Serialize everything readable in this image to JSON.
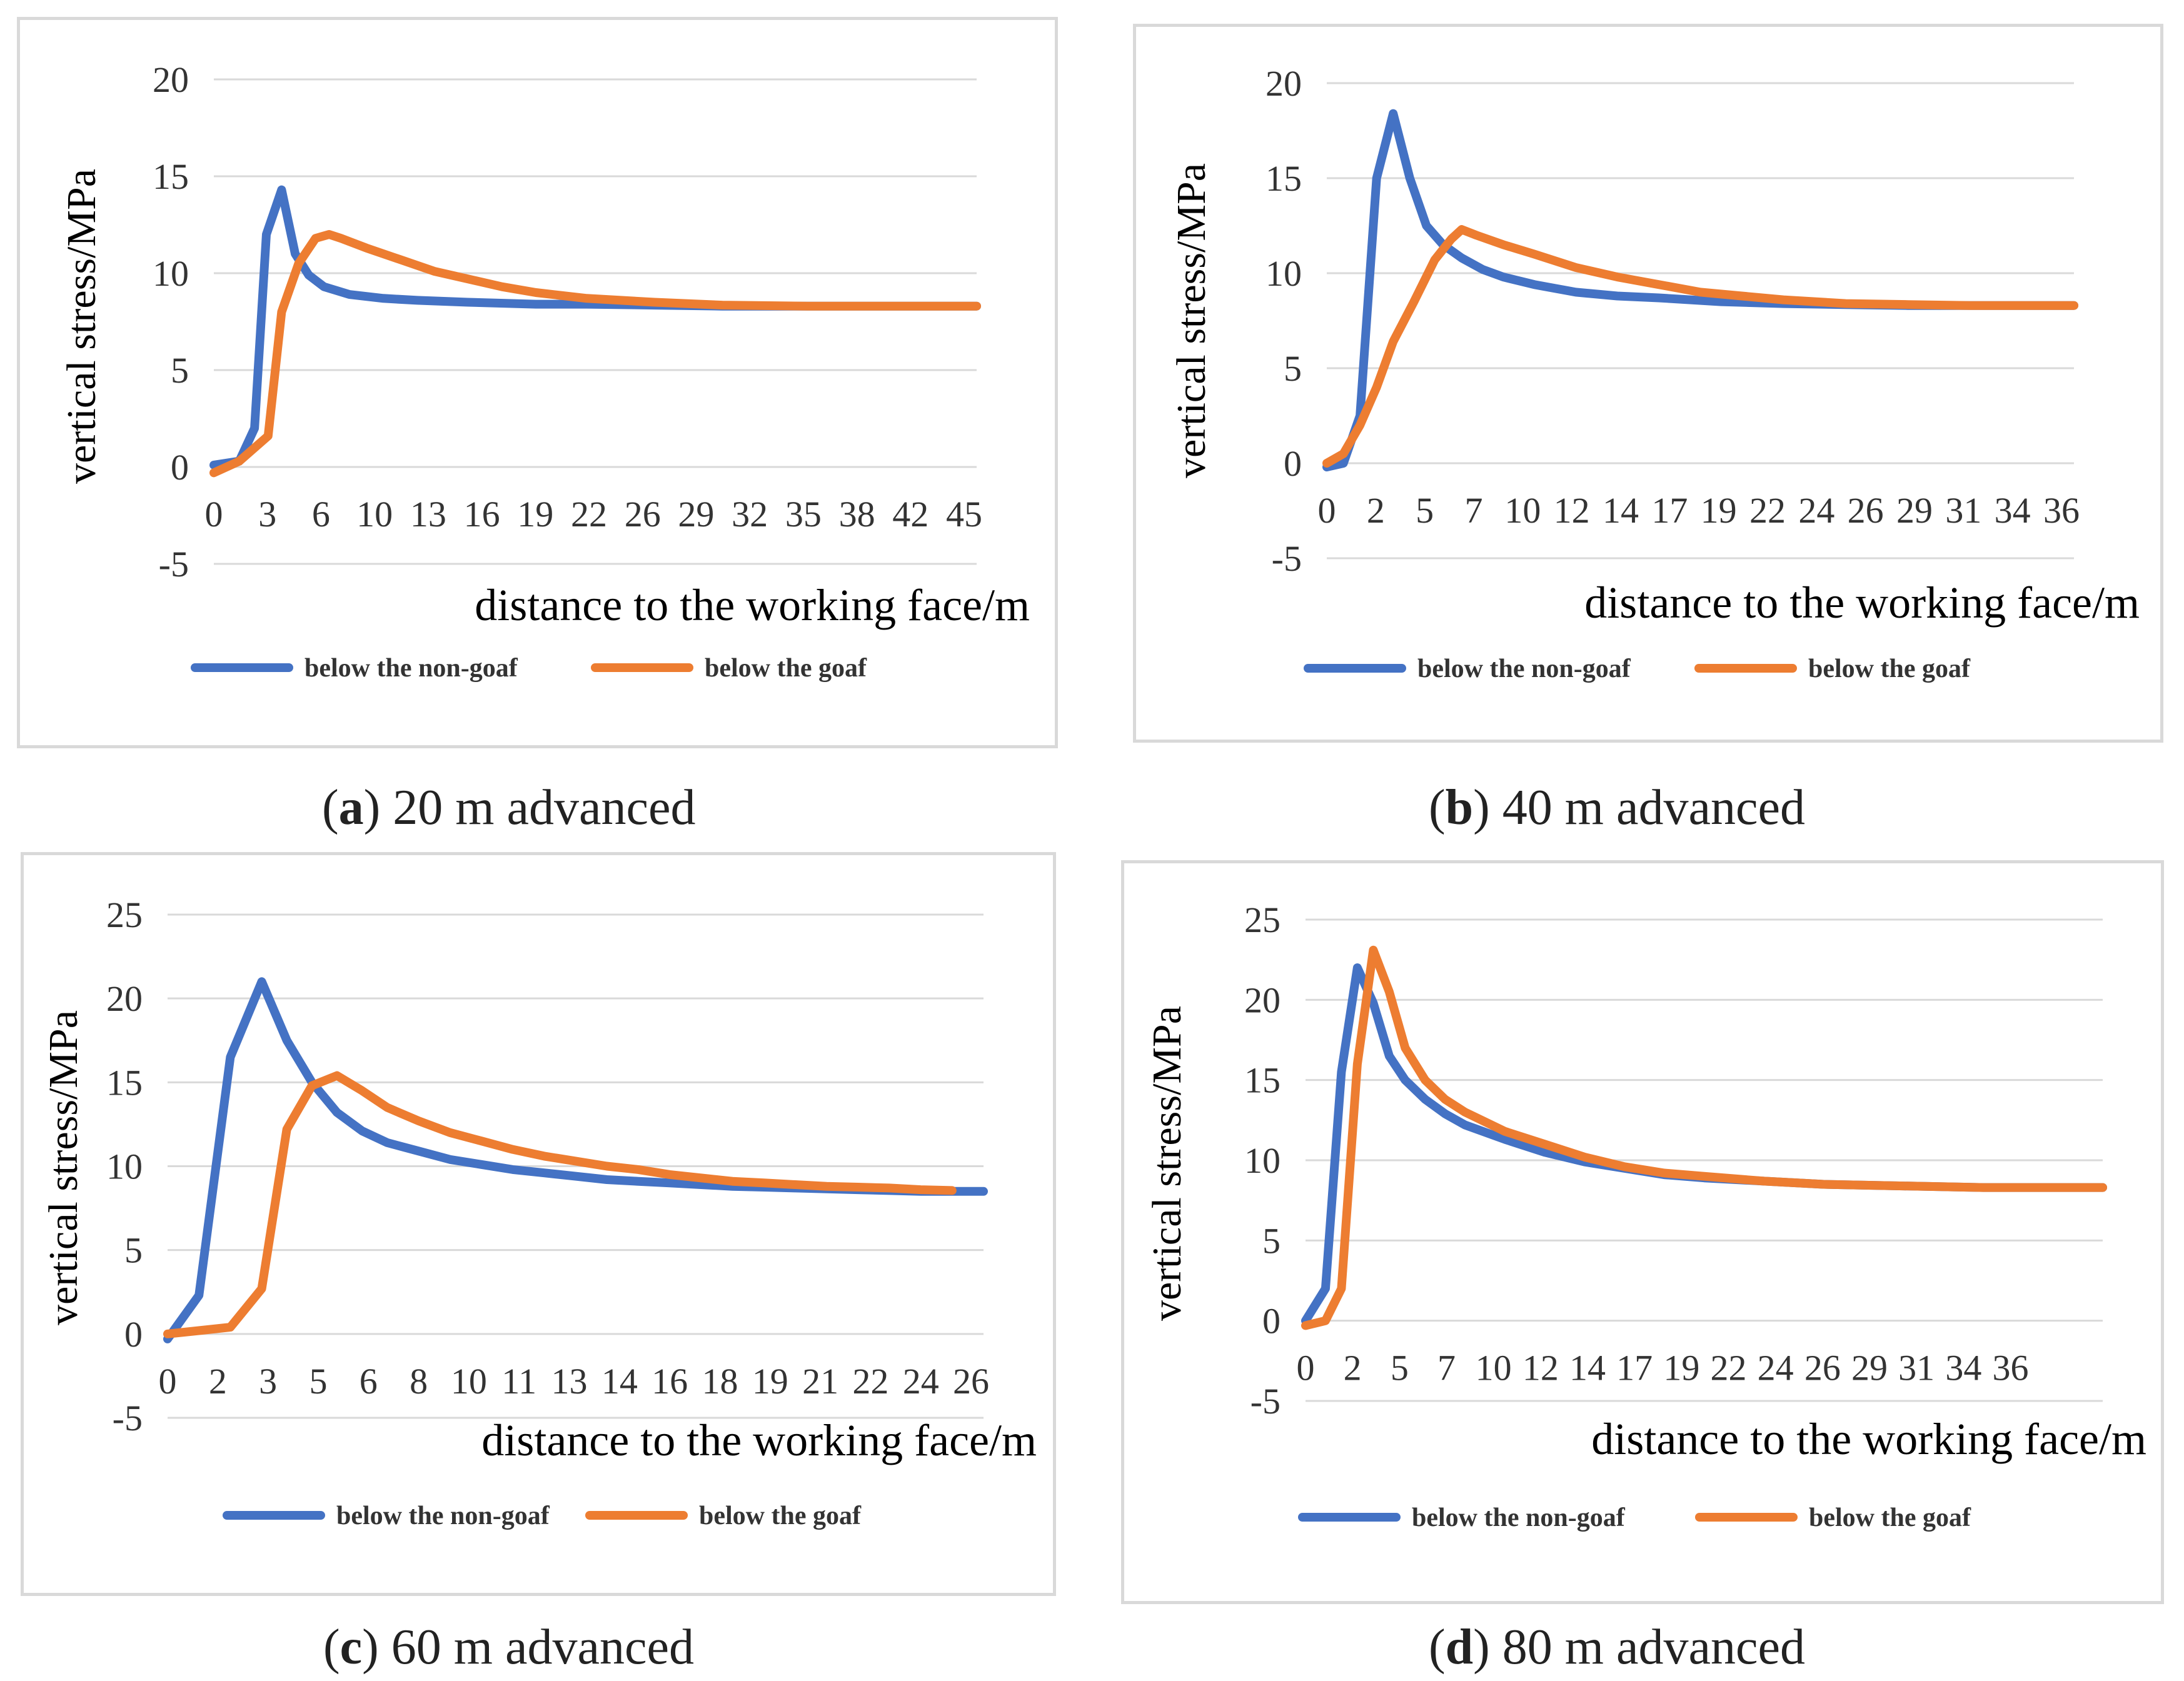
{
  "figure_captions": [
    {
      "letter": "a",
      "text": " 20 m advanced"
    },
    {
      "letter": "b",
      "text": " 40 m advanced"
    },
    {
      "letter": "c",
      "text": " 60 m advanced"
    },
    {
      "letter": "d",
      "text": " 80 m advanced"
    }
  ],
  "colors": {
    "non_goaf": "#4472c4",
    "goaf": "#ed7d31",
    "grid": "#d9d9d9"
  },
  "chart_data": [
    {
      "id": "a",
      "type": "line",
      "title": "",
      "ylabel": "vertical stress/MPa",
      "xlabel": "distance to the working face/m",
      "ylim": [
        -5,
        20
      ],
      "yticks": [
        -5,
        0,
        5,
        10,
        15,
        20
      ],
      "grid": true,
      "legend": "bottom",
      "x_tick_labels": [
        "0",
        "3",
        "6",
        "10",
        "13",
        "16",
        "19",
        "22",
        "26",
        "29",
        "32",
        "35",
        "38",
        "42",
        "45"
      ],
      "x_span": [
        0,
        45
      ],
      "series": [
        {
          "name": "below the non-goaf",
          "x": [
            0,
            1.5,
            2.4,
            3.1,
            4,
            4.8,
            5.6,
            6.5,
            8,
            10,
            12,
            15,
            19,
            22,
            26,
            30,
            35,
            40,
            45
          ],
          "y": [
            0.1,
            0.3,
            2,
            12,
            14.3,
            11,
            9.9,
            9.3,
            8.9,
            8.7,
            8.6,
            8.5,
            8.4,
            8.4,
            8.35,
            8.3,
            8.3,
            8.3,
            8.3
          ]
        },
        {
          "name": "below the goaf",
          "x": [
            0,
            1.5,
            3.2,
            4,
            5,
            6,
            6.8,
            7.5,
            9,
            11,
            13,
            15,
            17,
            19,
            22,
            26,
            30,
            35,
            40,
            45
          ],
          "y": [
            -0.3,
            0.3,
            1.6,
            8,
            10.5,
            11.8,
            12,
            11.8,
            11.3,
            10.7,
            10.1,
            9.7,
            9.3,
            9,
            8.7,
            8.5,
            8.35,
            8.3,
            8.3,
            8.3
          ]
        }
      ]
    },
    {
      "id": "b",
      "type": "line",
      "title": "",
      "ylabel": "vertical stress/MPa",
      "xlabel": "distance to the working face/m",
      "ylim": [
        -5,
        20
      ],
      "yticks": [
        -5,
        0,
        5,
        10,
        15,
        20
      ],
      "grid": true,
      "legend": "bottom",
      "x_tick_labels": [
        "0",
        "2",
        "5",
        "7",
        "10",
        "12",
        "14",
        "17",
        "19",
        "22",
        "24",
        "26",
        "29",
        "31",
        "34",
        "36"
      ],
      "x_span": [
        0,
        36
      ],
      "series": [
        {
          "name": "below the non-goaf",
          "x": [
            0,
            0.8,
            1.6,
            2.4,
            3.2,
            4,
            4.8,
            5.6,
            6.5,
            7.5,
            8.5,
            10,
            12,
            14,
            16,
            19,
            22,
            25,
            28,
            31,
            36
          ],
          "y": [
            -0.2,
            0,
            2.5,
            15,
            18.4,
            15,
            12.5,
            11.5,
            10.8,
            10.2,
            9.8,
            9.4,
            9,
            8.8,
            8.7,
            8.5,
            8.4,
            8.35,
            8.3,
            8.3,
            8.3
          ]
        },
        {
          "name": "below the goaf",
          "x": [
            0,
            0.8,
            1.6,
            2.4,
            3.2,
            4.2,
            5.2,
            6,
            6.5,
            7.2,
            8.5,
            10,
            12,
            14,
            16,
            18,
            20,
            22,
            25,
            28,
            31,
            36
          ],
          "y": [
            0,
            0.5,
            2,
            4,
            6.4,
            8.5,
            10.7,
            11.8,
            12.3,
            12,
            11.5,
            11,
            10.3,
            9.8,
            9.4,
            9,
            8.8,
            8.6,
            8.4,
            8.35,
            8.3,
            8.3
          ]
        }
      ]
    },
    {
      "id": "c",
      "type": "line",
      "title": "",
      "ylabel": "vertical stress/MPa",
      "xlabel": "distance to the working face/m",
      "ylim": [
        -5,
        25
      ],
      "yticks": [
        -5,
        0,
        5,
        10,
        15,
        20,
        25
      ],
      "grid": true,
      "legend": "bottom",
      "x_tick_labels": [
        "0",
        "2",
        "3",
        "5",
        "6",
        "8",
        "10",
        "11",
        "13",
        "14",
        "16",
        "18",
        "19",
        "21",
        "22",
        "24",
        "26"
      ],
      "x_span": [
        0,
        26
      ],
      "series": [
        {
          "name": "below the non-goaf",
          "x": [
            0,
            1,
            2,
            3,
            3.8,
            4.6,
            5.4,
            6.2,
            7,
            8,
            9,
            10,
            11,
            12,
            13,
            14,
            15,
            16,
            17,
            18,
            19,
            20,
            21,
            22,
            23,
            24,
            25,
            26
          ],
          "y": [
            -0.3,
            2.3,
            16.5,
            21,
            17.5,
            15,
            13.2,
            12.1,
            11.4,
            10.9,
            10.4,
            10.1,
            9.8,
            9.6,
            9.4,
            9.2,
            9.1,
            9,
            8.9,
            8.8,
            8.75,
            8.7,
            8.65,
            8.6,
            8.55,
            8.5,
            8.5,
            8.5
          ]
        },
        {
          "name": "below the goaf",
          "x": [
            0,
            1,
            2,
            3,
            3.8,
            4.6,
            5.4,
            6.2,
            7,
            8,
            9,
            10,
            11,
            12,
            13,
            14,
            15,
            16,
            17,
            18,
            19,
            20,
            21,
            22,
            23,
            24,
            25
          ],
          "y": [
            0,
            0.2,
            0.4,
            2.7,
            12.2,
            14.8,
            15.4,
            14.5,
            13.5,
            12.7,
            12,
            11.5,
            11,
            10.6,
            10.3,
            10,
            9.8,
            9.5,
            9.3,
            9.1,
            9,
            8.9,
            8.8,
            8.75,
            8.7,
            8.6,
            8.55
          ]
        }
      ]
    },
    {
      "id": "d",
      "type": "line",
      "title": "",
      "ylabel": "vertical stress/MPa",
      "xlabel": "distance to the working face/m",
      "ylim": [
        -5,
        25
      ],
      "yticks": [
        -5,
        0,
        5,
        10,
        15,
        20,
        25
      ],
      "grid": true,
      "legend": "bottom",
      "x_tick_labels": [
        "0",
        "2",
        "5",
        "7",
        "10",
        "12",
        "14",
        "17",
        "19",
        "22",
        "24",
        "26",
        "29",
        "31",
        "34",
        "36"
      ],
      "x_span": [
        0,
        36
      ],
      "x_domain_max": 40,
      "series": [
        {
          "name": "below the non-goaf",
          "x": [
            0,
            1,
            1.8,
            2.6,
            3.4,
            4.2,
            5,
            6,
            7,
            8,
            10,
            12,
            14,
            16,
            18,
            20,
            23,
            26,
            30,
            34,
            36,
            40
          ],
          "y": [
            0,
            2,
            15.5,
            22,
            19.8,
            16.5,
            15,
            13.8,
            12.9,
            12.2,
            11.3,
            10.5,
            9.9,
            9.5,
            9.1,
            8.9,
            8.7,
            8.5,
            8.4,
            8.3,
            8.3,
            8.3
          ]
        },
        {
          "name": "below the goaf",
          "x": [
            0,
            1,
            1.8,
            2.6,
            3.4,
            4.2,
            5,
            6,
            7,
            8,
            10,
            12,
            14,
            16,
            18,
            20,
            23,
            26,
            30,
            34,
            36,
            40
          ],
          "y": [
            -0.3,
            0,
            2,
            16,
            23.1,
            20.5,
            17,
            15,
            13.8,
            13,
            11.8,
            11,
            10.2,
            9.6,
            9.2,
            9,
            8.7,
            8.5,
            8.4,
            8.3,
            8.3,
            8.3
          ]
        }
      ]
    }
  ]
}
